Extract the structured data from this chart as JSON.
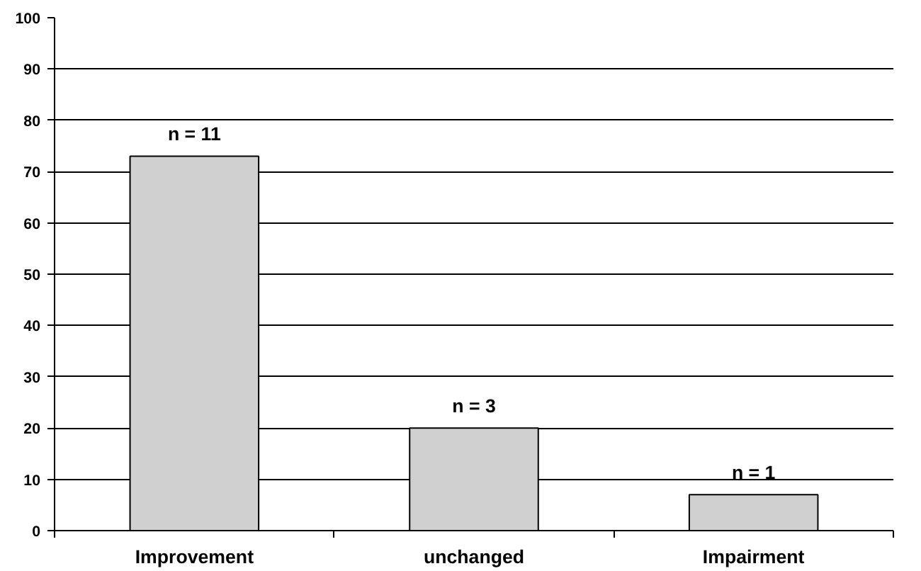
{
  "chart_data": {
    "type": "bar",
    "categories": [
      "Improvement",
      "unchanged",
      "Impairment"
    ],
    "values": [
      73,
      20,
      7
    ],
    "annotations": [
      {
        "text": "n = 11",
        "x": "Improvement",
        "y": 73
      },
      {
        "text": "n = 3",
        "x": "unchanged",
        "y": 20
      },
      {
        "text": "n = 1",
        "x": "Impairment",
        "y": 7
      }
    ],
    "color": "#d0d0d0",
    "ylim": [
      0,
      100
    ],
    "yticks": [
      0,
      10,
      20,
      30,
      40,
      50,
      60,
      70,
      80,
      90,
      100
    ],
    "grid": "y"
  }
}
